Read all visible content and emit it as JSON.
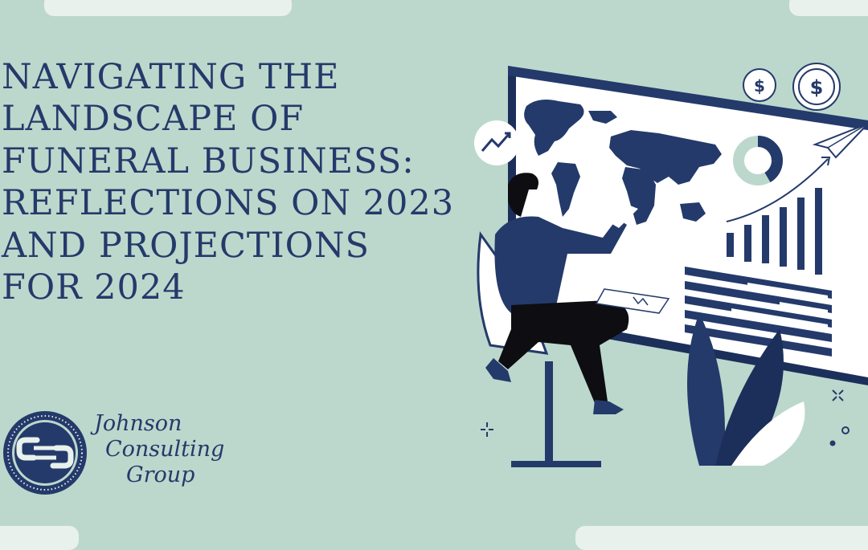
{
  "headline": {
    "lines": [
      "NAVIGATING THE",
      "LANDSCAPE OF",
      "FUNERAL BUSINESS:",
      "REFLECTIONS ON 2023",
      "AND PROJECTIONS",
      "FOR 2024"
    ]
  },
  "brand": {
    "lines": [
      "Johnson",
      "Consulting",
      "Group"
    ]
  },
  "illustration": {
    "currency_symbol": "$"
  },
  "colors": {
    "background": "#bcd8cc",
    "navy": "#243a6b",
    "dark_navy": "#1c2f5a",
    "white": "#ffffff",
    "pill": "#e9f1ec"
  }
}
